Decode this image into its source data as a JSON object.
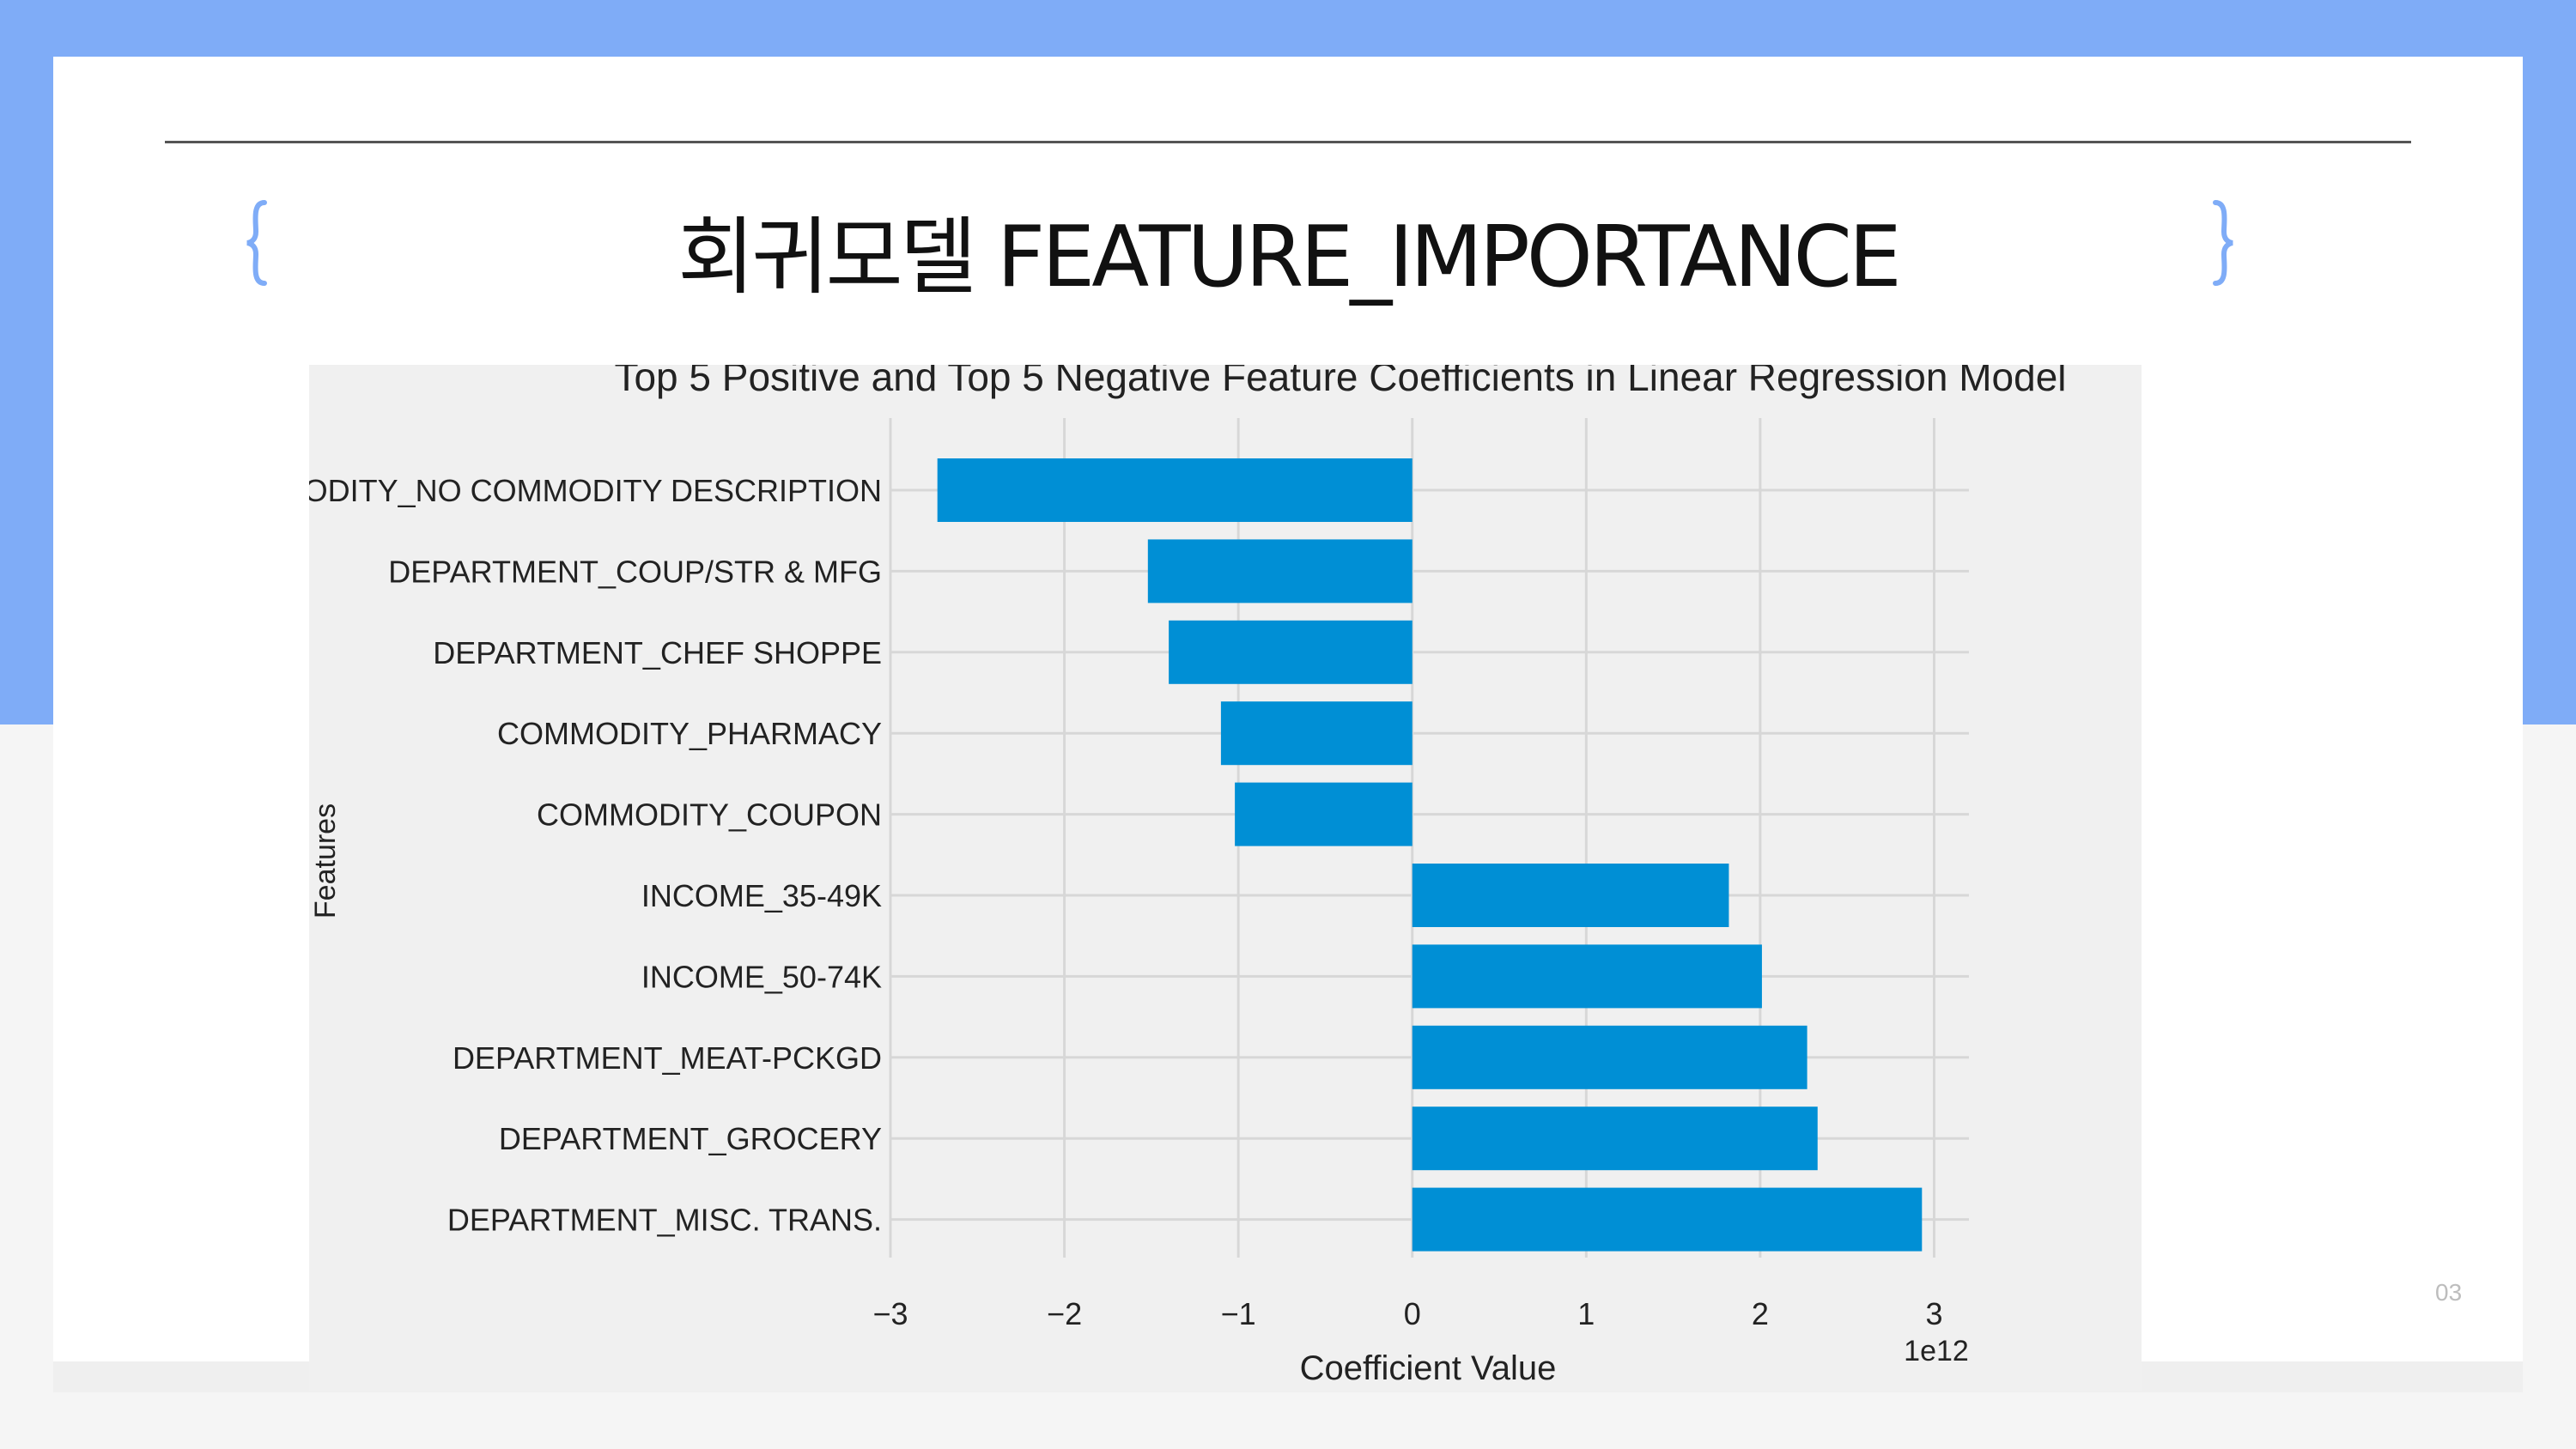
{
  "slide": {
    "title": "회귀모델 FEATURE_IMPORTANCE",
    "page_number": "03",
    "accent_color": "#7facf7",
    "left_icon": "brace-icon",
    "right_icon": "brace-icon"
  },
  "chart_data": {
    "type": "bar",
    "orientation": "horizontal",
    "title": "Top 5 Positive and Top 5 Negative Feature Coefficients in Linear Regression Model",
    "xlabel": "Coefficient Value",
    "ylabel": "Features",
    "x_scale_label": "1e12",
    "xlim": [
      -3,
      3.2
    ],
    "x_ticks": [
      -3,
      -2,
      -1,
      0,
      1,
      2,
      3
    ],
    "x_tick_labels": [
      "−3",
      "−2",
      "−1",
      "0",
      "1",
      "2",
      "3"
    ],
    "grid": true,
    "bar_color": "#008fd5",
    "categories": [
      "COMMODITY_NO COMMODITY DESCRIPTION",
      "DEPARTMENT_COUP/STR & MFG",
      "DEPARTMENT_CHEF SHOPPE",
      "COMMODITY_PHARMACY",
      "COMMODITY_COUPON",
      "INCOME_35-49K",
      "INCOME_50-74K",
      "DEPARTMENT_MEAT-PCKGD",
      "DEPARTMENT_GROCERY",
      "DEPARTMENT_MISC. TRANS."
    ],
    "values": [
      -2.73,
      -1.52,
      -1.4,
      -1.1,
      -1.02,
      1.82,
      2.01,
      2.27,
      2.33,
      2.93
    ]
  }
}
